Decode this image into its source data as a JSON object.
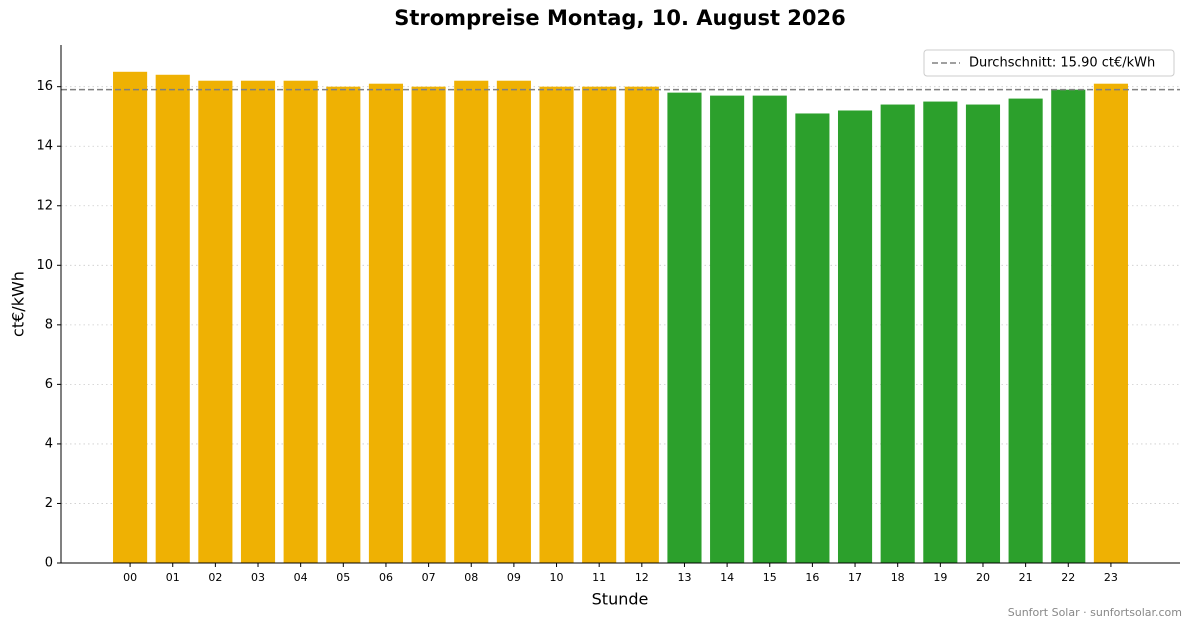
{
  "chart_data": {
    "type": "bar",
    "title": "Strompreise Montag, 10. August 2026",
    "xlabel": "Stunde",
    "ylabel": "ct€/kWh",
    "footer": "Sunfort Solar · sunfortsolar.com",
    "categories": [
      "00",
      "01",
      "02",
      "03",
      "04",
      "05",
      "06",
      "07",
      "08",
      "09",
      "10",
      "11",
      "12",
      "13",
      "14",
      "15",
      "16",
      "17",
      "18",
      "19",
      "20",
      "21",
      "22",
      "23"
    ],
    "values": [
      16.5,
      16.4,
      16.2,
      16.2,
      16.2,
      16.0,
      16.1,
      16.0,
      16.2,
      16.2,
      16.0,
      16.0,
      16.0,
      15.8,
      15.7,
      15.7,
      15.1,
      15.2,
      15.4,
      15.5,
      15.4,
      15.6,
      15.9,
      16.1
    ],
    "colors": [
      "#efb103",
      "#efb103",
      "#efb103",
      "#efb103",
      "#efb103",
      "#efb103",
      "#efb103",
      "#efb103",
      "#efb103",
      "#efb103",
      "#efb103",
      "#efb103",
      "#efb103",
      "#2ca02c",
      "#2ca02c",
      "#2ca02c",
      "#2ca02c",
      "#2ca02c",
      "#2ca02c",
      "#2ca02c",
      "#2ca02c",
      "#2ca02c",
      "#2ca02c",
      "#efb103"
    ],
    "average": {
      "value": 15.9,
      "label": "Durchschnitt: 15.90 ct€/kWh"
    },
    "average_color": "#808080",
    "ylim": [
      0,
      17.4
    ],
    "yticks": [
      0,
      2,
      4,
      6,
      8,
      10,
      12,
      14,
      16
    ],
    "grid": true,
    "legend": "upper right"
  }
}
